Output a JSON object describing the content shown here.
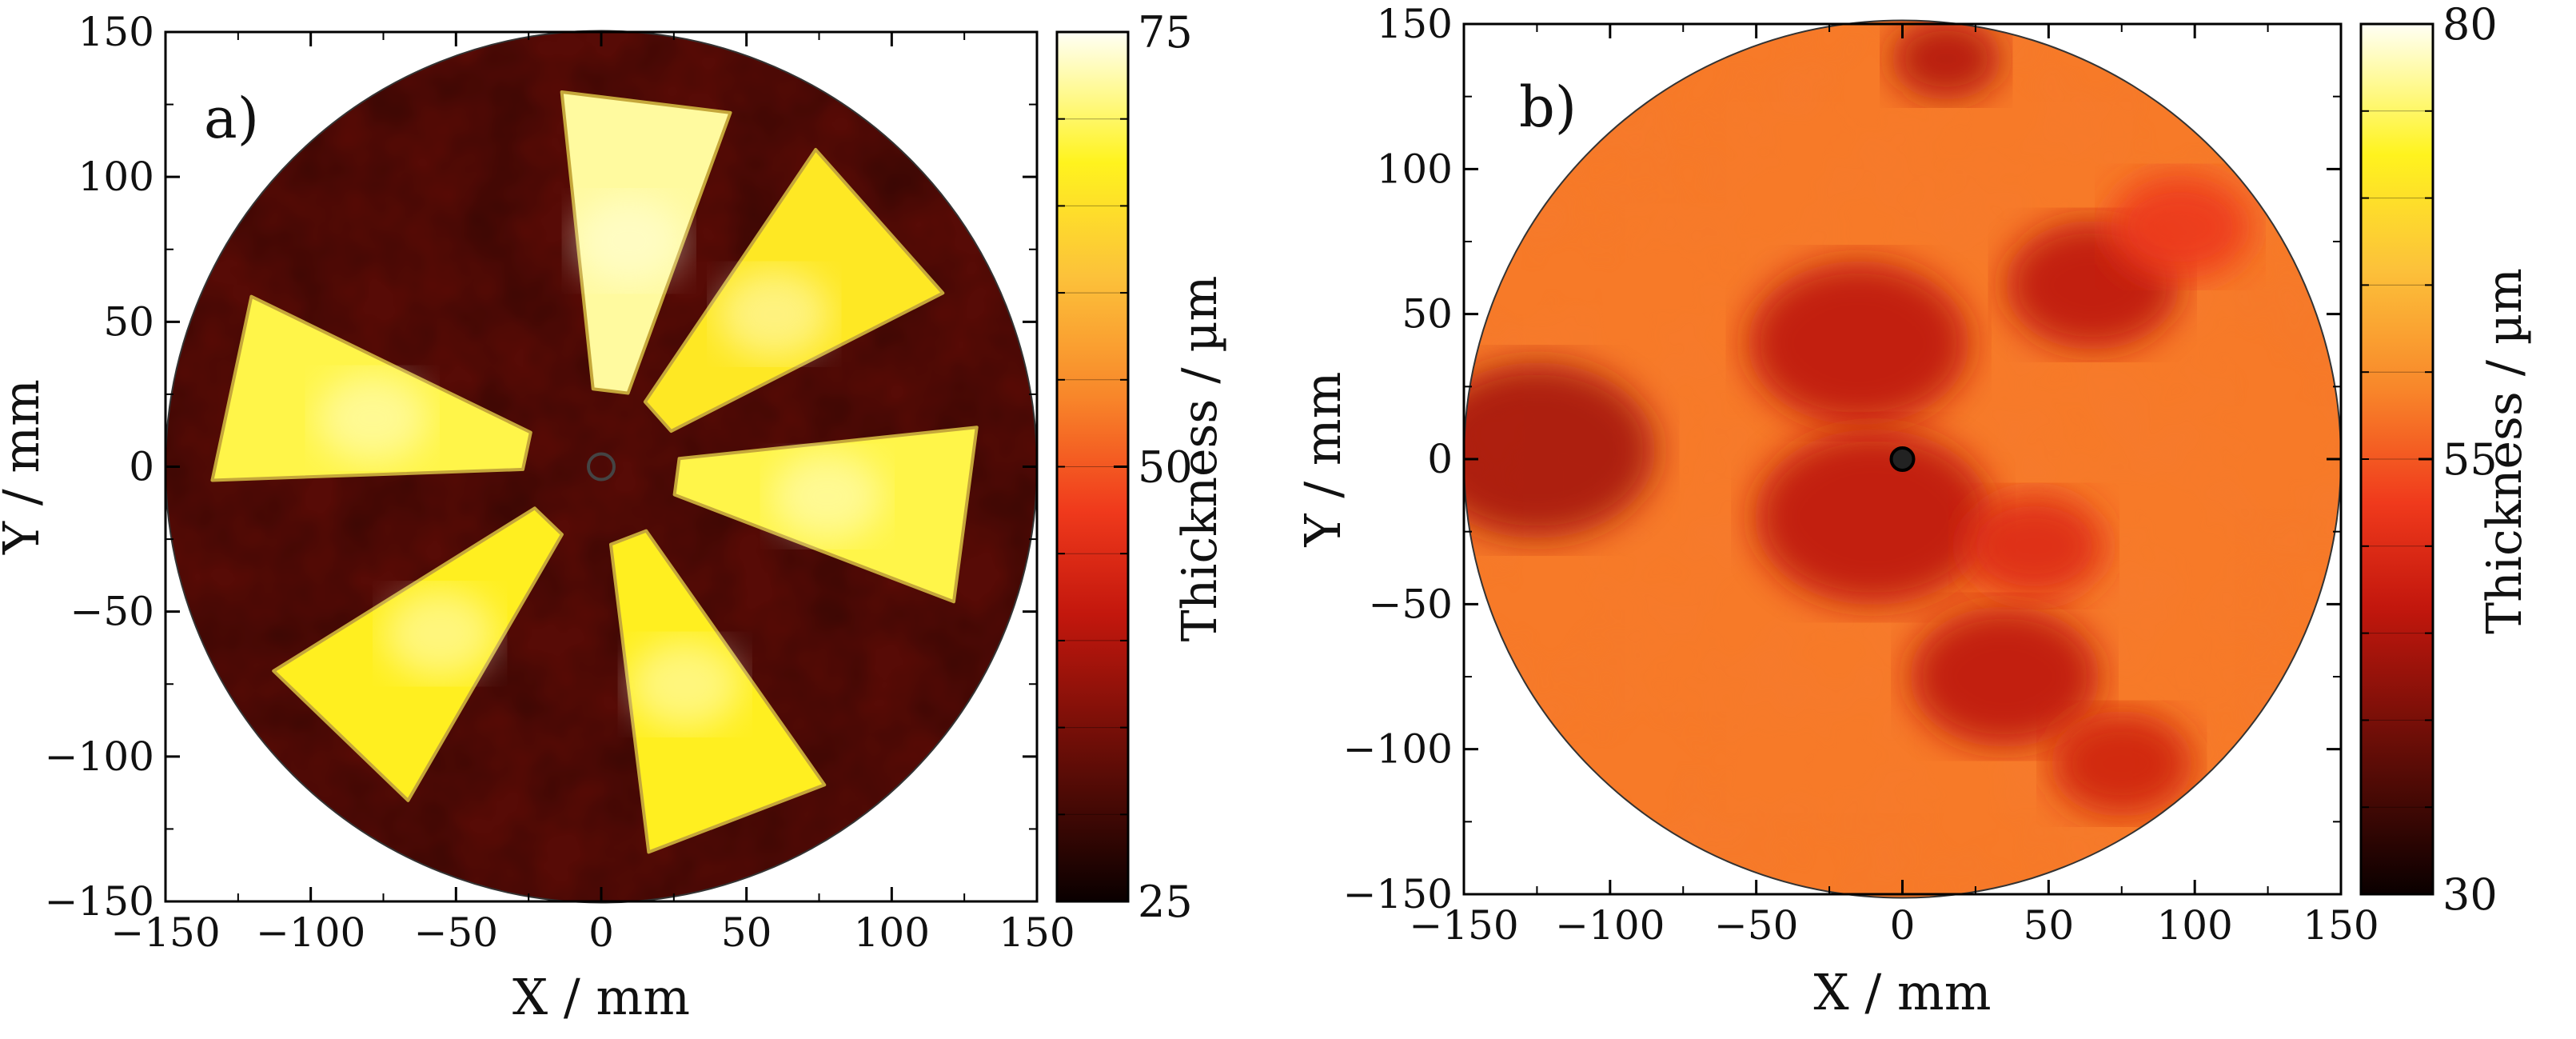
{
  "chart_data": [
    {
      "type": "heatmap",
      "panel_label": "a)",
      "xlabel": "X / mm",
      "ylabel": "Y / mm",
      "xlim": [
        -150,
        150
      ],
      "ylim": [
        -150,
        150
      ],
      "xticks": [
        -150,
        -100,
        -50,
        0,
        50,
        100,
        150
      ],
      "yticks": [
        -150,
        -100,
        -50,
        0,
        50,
        100,
        150
      ],
      "xtick_labels": [
        "−150",
        "−100",
        "−50",
        "0",
        "50",
        "100",
        "150"
      ],
      "ytick_labels": [
        "−150",
        "−100",
        "−50",
        "0",
        "50",
        "100",
        "150"
      ],
      "wafer_radius": 150,
      "colorbar": {
        "label": "Thickness / µm",
        "min": 25,
        "max": 75,
        "ticks": [
          25,
          50,
          75
        ],
        "tick_labels": [
          "25",
          "50",
          "75"
        ],
        "colormap": "hot"
      },
      "background_thickness": 32,
      "sectors": [
        {
          "start_deg": 70,
          "end_deg": 96,
          "r_inner": 27,
          "r_outer": 130,
          "thickness": 72
        },
        {
          "start_deg": 27,
          "end_deg": 56,
          "r_inner": 27,
          "r_outer": 132,
          "thickness": 66
        },
        {
          "start_deg": -21,
          "end_deg": 6,
          "r_inner": 27,
          "r_outer": 130,
          "thickness": 69
        },
        {
          "start_deg": -83,
          "end_deg": -55,
          "r_inner": 27,
          "r_outer": 134,
          "thickness": 67
        },
        {
          "start_deg": -148,
          "end_deg": -120,
          "r_inner": 27,
          "r_outer": 133,
          "thickness": 67
        },
        {
          "start_deg": 154,
          "end_deg": 182,
          "r_inner": 27,
          "r_outer": 134,
          "thickness": 69
        }
      ],
      "colors": {
        "background": "#8f1f12",
        "sector_fill": "#fce74c",
        "sector_edge": "#c5a73a"
      }
    },
    {
      "type": "heatmap",
      "panel_label": "b)",
      "xlabel": "X / mm",
      "ylabel": "Y / mm",
      "xlim": [
        -150,
        150
      ],
      "ylim": [
        -150,
        150
      ],
      "xticks": [
        -150,
        -100,
        -50,
        0,
        50,
        100,
        150
      ],
      "yticks": [
        -150,
        -100,
        -50,
        0,
        50,
        100,
        150
      ],
      "xtick_labels": [
        "−150",
        "−100",
        "−50",
        "0",
        "50",
        "100",
        "150"
      ],
      "ytick_labels": [
        "−150",
        "−100",
        "−50",
        "0",
        "50",
        "100",
        "150"
      ],
      "wafer_radius": 150,
      "colorbar": {
        "label": "Thickness / µm",
        "min": 30,
        "max": 80,
        "ticks": [
          30,
          55,
          80
        ],
        "tick_labels": [
          "30",
          "55",
          "80"
        ],
        "colormap": "hot"
      },
      "background_thickness": 58,
      "thin_regions": [
        {
          "x": -125,
          "y": 3,
          "r": 30,
          "thickness": 44
        },
        {
          "x": -15,
          "y": 40,
          "r": 28,
          "thickness": 46
        },
        {
          "x": -10,
          "y": -20,
          "r": 30,
          "thickness": 46
        },
        {
          "x": 65,
          "y": 60,
          "r": 22,
          "thickness": 46
        },
        {
          "x": 35,
          "y": -75,
          "r": 24,
          "thickness": 46
        },
        {
          "x": 75,
          "y": -105,
          "r": 18,
          "thickness": 48
        },
        {
          "x": 15,
          "y": 138,
          "r": 14,
          "thickness": 45
        },
        {
          "x": 45,
          "y": -30,
          "r": 18,
          "thickness": 50
        },
        {
          "x": 95,
          "y": 80,
          "r": 18,
          "thickness": 52
        }
      ],
      "colors": {
        "background": "#f7892b",
        "thin_fill": "#e8381a"
      }
    }
  ]
}
